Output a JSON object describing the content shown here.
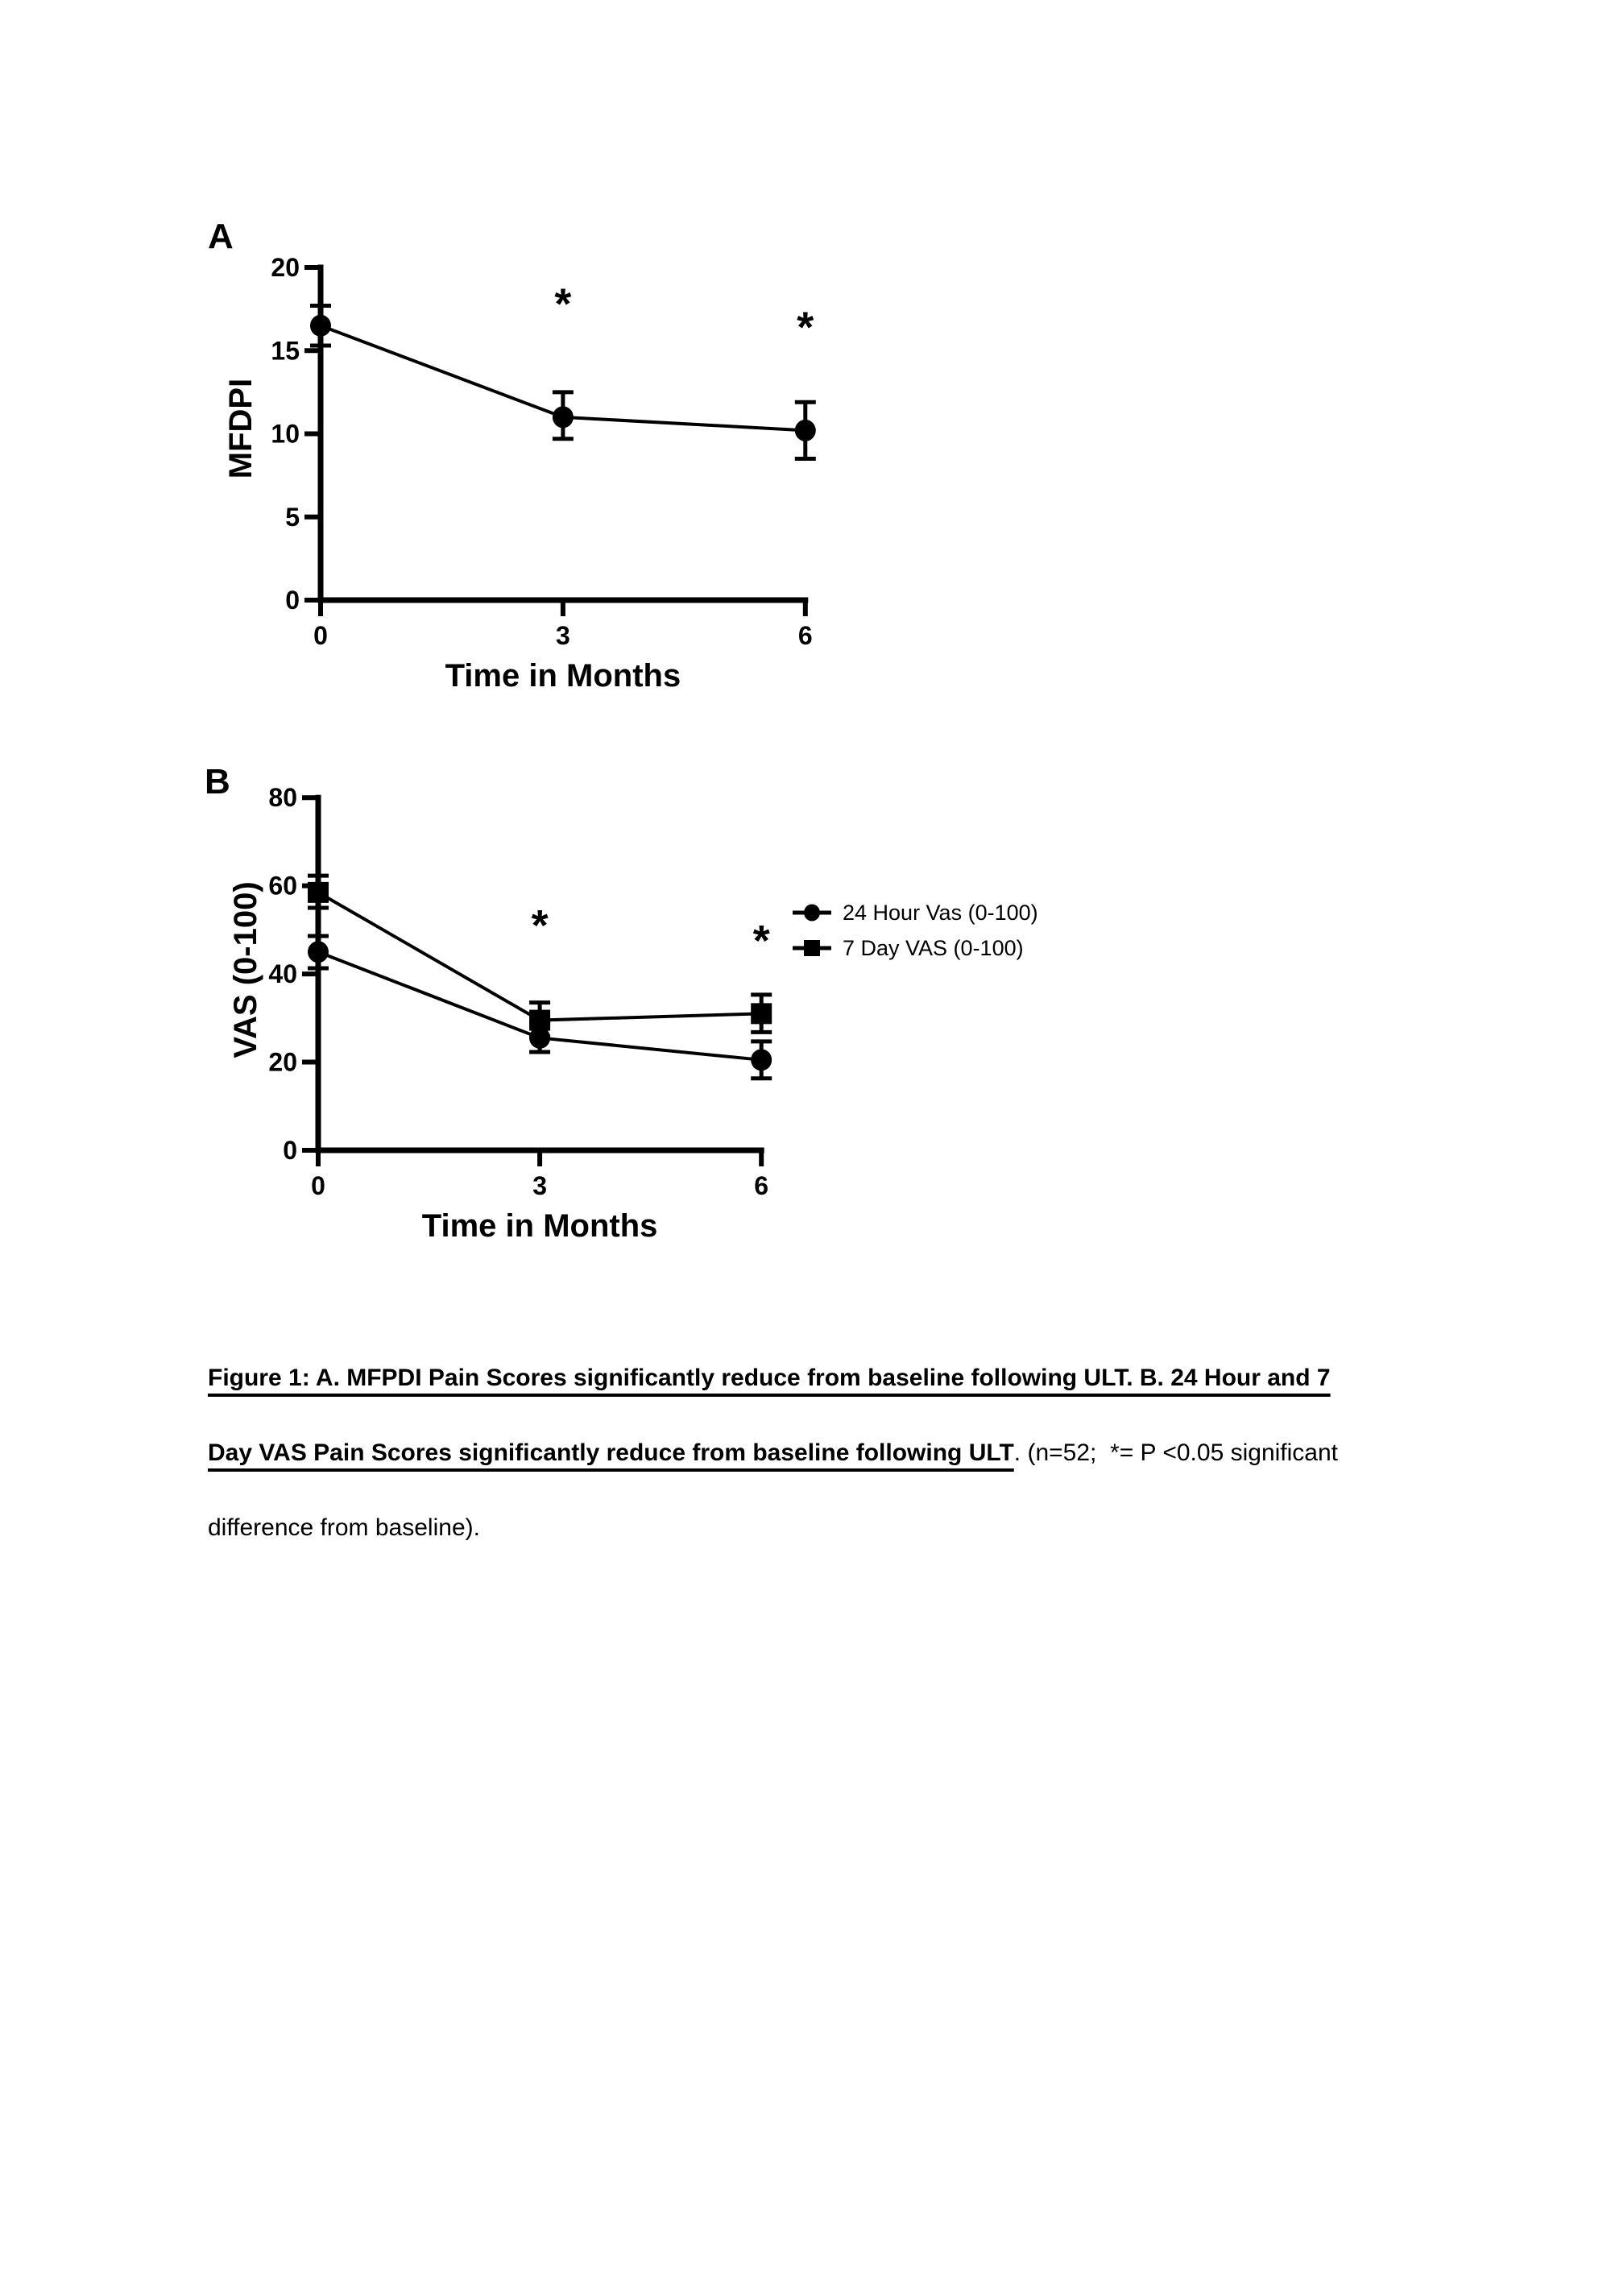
{
  "page": {
    "background": "#ffffff",
    "ink_color": "#000000"
  },
  "chart_data": [
    {
      "panel_label": "A",
      "type": "line",
      "x": [
        0,
        3,
        6
      ],
      "xlabel": "Time in Months",
      "ylabel": "MFDPI",
      "ylim": [
        0,
        20
      ],
      "yticks": [
        0,
        5,
        10,
        15,
        20
      ],
      "xticks": [
        0,
        3,
        6
      ],
      "grid": false,
      "series": [
        {
          "name": "MFDPI",
          "marker": "circle",
          "color": "#000000",
          "values": [
            16.5,
            11.0,
            10.2
          ],
          "err_low": [
            15.3,
            9.7,
            8.5
          ],
          "err_high": [
            17.7,
            12.5,
            11.9
          ]
        }
      ],
      "significance_marks": [
        {
          "x": 3,
          "y": 17.8,
          "symbol": "*"
        },
        {
          "x": 6,
          "y": 16.4,
          "symbol": "*"
        }
      ],
      "legend": null
    },
    {
      "panel_label": "B",
      "type": "line",
      "x": [
        0,
        3,
        6
      ],
      "xlabel": "Time in Months",
      "ylabel": "VAS (0-100)",
      "ylim": [
        0,
        80
      ],
      "yticks": [
        0,
        20,
        40,
        60,
        80
      ],
      "xticks": [
        0,
        3,
        6
      ],
      "grid": false,
      "series": [
        {
          "name": "24 Hour Vas (0-100)",
          "marker": "circle",
          "color": "#000000",
          "values": [
            45,
            25.5,
            20.5
          ],
          "err_low": [
            41.3,
            22.3,
            16.3
          ],
          "err_high": [
            48.6,
            29,
            24.7
          ]
        },
        {
          "name": "7 Day VAS (0-100)",
          "marker": "square",
          "color": "#000000",
          "values": [
            58.5,
            29.5,
            31
          ],
          "err_low": [
            55,
            25.8,
            26.8
          ],
          "err_high": [
            62.3,
            33.5,
            35.3
          ]
        }
      ],
      "significance_marks": [
        {
          "x": 3,
          "y": 51,
          "symbol": "*"
        },
        {
          "x": 6,
          "y": 47.5,
          "symbol": "*"
        }
      ],
      "legend": {
        "position": "right",
        "entries": [
          "24 Hour Vas (0-100)",
          "7 Day VAS (0-100)"
        ]
      }
    }
  ],
  "caption": {
    "line1_bold_underline": "Figure 1: A. MFPDI Pain Scores significantly reduce from baseline following ULT. B. 24 Hour and 7",
    "line2_bold_underline": "Day VAS Pain Scores significantly reduce from baseline following ULT",
    "line2_regular": ". (n=52;  *= P <0.05 significant",
    "line3_regular": "difference from baseline)."
  }
}
